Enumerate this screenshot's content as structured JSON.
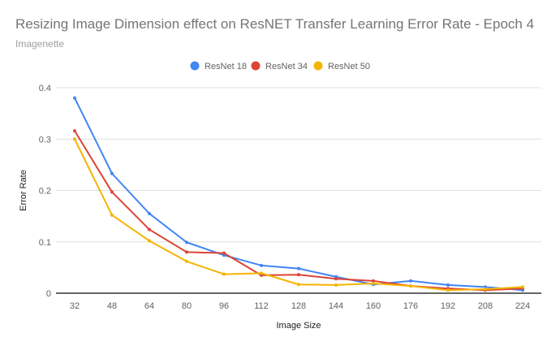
{
  "chart_data": {
    "type": "line",
    "title": "Resizing Image Dimension effect on ResNET Transfer Learning Error Rate - Epoch 4",
    "subtitle": "Imagenette",
    "xlabel": "Image Size",
    "ylabel": "Error Rate",
    "x": [
      32,
      48,
      64,
      80,
      96,
      112,
      128,
      144,
      160,
      176,
      192,
      208,
      224
    ],
    "ylim": [
      0,
      0.4
    ],
    "yticks": [
      "0",
      "0.1",
      "0.2",
      "0.3",
      "0.4"
    ],
    "grid": true,
    "legend_position": "top",
    "series": [
      {
        "name": "ResNet 18",
        "color": "#4285f4",
        "values": [
          0.38,
          0.233,
          0.155,
          0.099,
          0.074,
          0.054,
          0.048,
          0.032,
          0.017,
          0.024,
          0.016,
          0.012,
          0.006
        ]
      },
      {
        "name": "ResNet 34",
        "color": "#db4437",
        "values": [
          0.316,
          0.197,
          0.124,
          0.08,
          0.078,
          0.035,
          0.036,
          0.028,
          0.024,
          0.014,
          0.009,
          0.006,
          0.009
        ]
      },
      {
        "name": "ResNet 50",
        "color": "#f4b400",
        "values": [
          0.3,
          0.152,
          0.102,
          0.062,
          0.037,
          0.039,
          0.017,
          0.016,
          0.019,
          0.014,
          0.006,
          0.008,
          0.012
        ]
      }
    ]
  }
}
